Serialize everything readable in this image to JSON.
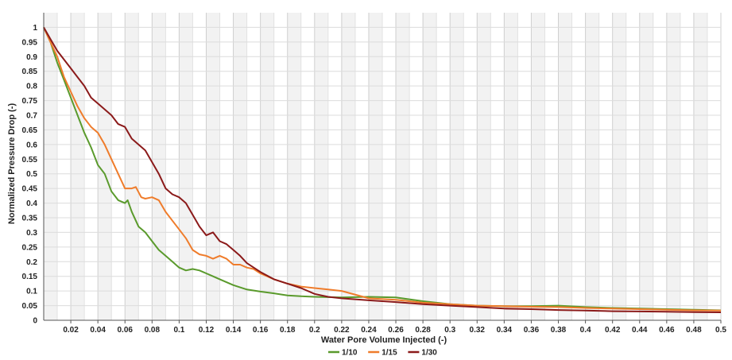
{
  "chart_data": {
    "type": "line",
    "xlabel": "Water Pore Volume Injected (-)",
    "ylabel": "Normalized Pressure Drop (-)",
    "xlim": [
      0,
      0.5
    ],
    "ylim": [
      0,
      1.05
    ],
    "x_ticks": [
      0.02,
      0.04,
      0.06,
      0.08,
      0.1,
      0.12,
      0.14,
      0.16,
      0.18,
      0.2,
      0.22,
      0.24,
      0.26,
      0.28,
      0.3,
      0.32,
      0.34,
      0.36,
      0.38,
      0.4,
      0.42,
      0.44,
      0.46,
      0.48,
      0.5
    ],
    "y_ticks": [
      0,
      0.05,
      0.1,
      0.15,
      0.2,
      0.25,
      0.3,
      0.35,
      0.4,
      0.45,
      0.5,
      0.55,
      0.6,
      0.65,
      0.7,
      0.75,
      0.8,
      0.85,
      0.9,
      0.95,
      1
    ],
    "grid": true,
    "legend_position": "bottom",
    "series": [
      {
        "name": "1/10",
        "color": "#5a9a2c",
        "points": [
          [
            0,
            1
          ],
          [
            0.005,
            0.95
          ],
          [
            0.01,
            0.88
          ],
          [
            0.015,
            0.82
          ],
          [
            0.02,
            0.76
          ],
          [
            0.025,
            0.7
          ],
          [
            0.03,
            0.64
          ],
          [
            0.035,
            0.59
          ],
          [
            0.04,
            0.53
          ],
          [
            0.045,
            0.5
          ],
          [
            0.05,
            0.44
          ],
          [
            0.055,
            0.41
          ],
          [
            0.06,
            0.4
          ],
          [
            0.062,
            0.41
          ],
          [
            0.065,
            0.37
          ],
          [
            0.07,
            0.32
          ],
          [
            0.075,
            0.3
          ],
          [
            0.08,
            0.27
          ],
          [
            0.085,
            0.24
          ],
          [
            0.09,
            0.22
          ],
          [
            0.095,
            0.2
          ],
          [
            0.1,
            0.18
          ],
          [
            0.105,
            0.17
          ],
          [
            0.11,
            0.175
          ],
          [
            0.115,
            0.17
          ],
          [
            0.12,
            0.16
          ],
          [
            0.125,
            0.15
          ],
          [
            0.13,
            0.14
          ],
          [
            0.14,
            0.12
          ],
          [
            0.15,
            0.105
          ],
          [
            0.16,
            0.098
          ],
          [
            0.17,
            0.092
          ],
          [
            0.18,
            0.085
          ],
          [
            0.19,
            0.082
          ],
          [
            0.2,
            0.08
          ],
          [
            0.22,
            0.078
          ],
          [
            0.24,
            0.08
          ],
          [
            0.26,
            0.078
          ],
          [
            0.28,
            0.065
          ],
          [
            0.3,
            0.055
          ],
          [
            0.32,
            0.05
          ],
          [
            0.34,
            0.048
          ],
          [
            0.36,
            0.048
          ],
          [
            0.38,
            0.05
          ],
          [
            0.4,
            0.045
          ],
          [
            0.42,
            0.042
          ],
          [
            0.44,
            0.04
          ],
          [
            0.46,
            0.038
          ],
          [
            0.48,
            0.036
          ],
          [
            0.5,
            0.034
          ]
        ]
      },
      {
        "name": "1/15",
        "color": "#ef7c2b",
        "points": [
          [
            0,
            1
          ],
          [
            0.005,
            0.95
          ],
          [
            0.01,
            0.9
          ],
          [
            0.015,
            0.83
          ],
          [
            0.02,
            0.78
          ],
          [
            0.025,
            0.73
          ],
          [
            0.03,
            0.69
          ],
          [
            0.035,
            0.66
          ],
          [
            0.04,
            0.64
          ],
          [
            0.045,
            0.6
          ],
          [
            0.05,
            0.55
          ],
          [
            0.055,
            0.5
          ],
          [
            0.06,
            0.45
          ],
          [
            0.065,
            0.45
          ],
          [
            0.068,
            0.455
          ],
          [
            0.072,
            0.42
          ],
          [
            0.075,
            0.415
          ],
          [
            0.08,
            0.42
          ],
          [
            0.085,
            0.41
          ],
          [
            0.09,
            0.37
          ],
          [
            0.095,
            0.34
          ],
          [
            0.1,
            0.31
          ],
          [
            0.105,
            0.28
          ],
          [
            0.11,
            0.24
          ],
          [
            0.115,
            0.225
          ],
          [
            0.12,
            0.22
          ],
          [
            0.125,
            0.21
          ],
          [
            0.13,
            0.22
          ],
          [
            0.135,
            0.21
          ],
          [
            0.14,
            0.19
          ],
          [
            0.145,
            0.19
          ],
          [
            0.15,
            0.18
          ],
          [
            0.155,
            0.175
          ],
          [
            0.16,
            0.16
          ],
          [
            0.17,
            0.14
          ],
          [
            0.18,
            0.125
          ],
          [
            0.19,
            0.115
          ],
          [
            0.2,
            0.11
          ],
          [
            0.21,
            0.105
          ],
          [
            0.22,
            0.1
          ],
          [
            0.24,
            0.075
          ],
          [
            0.26,
            0.07
          ],
          [
            0.28,
            0.06
          ],
          [
            0.3,
            0.055
          ],
          [
            0.32,
            0.05
          ],
          [
            0.34,
            0.048
          ],
          [
            0.36,
            0.046
          ],
          [
            0.38,
            0.045
          ],
          [
            0.4,
            0.042
          ],
          [
            0.42,
            0.04
          ],
          [
            0.44,
            0.038
          ],
          [
            0.46,
            0.036
          ],
          [
            0.48,
            0.034
          ],
          [
            0.5,
            0.033
          ]
        ]
      },
      {
        "name": "1/30",
        "color": "#8b1a1a",
        "points": [
          [
            0,
            1
          ],
          [
            0.005,
            0.96
          ],
          [
            0.01,
            0.92
          ],
          [
            0.015,
            0.89
          ],
          [
            0.02,
            0.86
          ],
          [
            0.025,
            0.83
          ],
          [
            0.03,
            0.8
          ],
          [
            0.035,
            0.76
          ],
          [
            0.04,
            0.74
          ],
          [
            0.045,
            0.72
          ],
          [
            0.05,
            0.7
          ],
          [
            0.055,
            0.67
          ],
          [
            0.06,
            0.66
          ],
          [
            0.065,
            0.62
          ],
          [
            0.07,
            0.6
          ],
          [
            0.075,
            0.58
          ],
          [
            0.08,
            0.54
          ],
          [
            0.085,
            0.5
          ],
          [
            0.09,
            0.45
          ],
          [
            0.095,
            0.43
          ],
          [
            0.1,
            0.42
          ],
          [
            0.105,
            0.4
          ],
          [
            0.11,
            0.36
          ],
          [
            0.115,
            0.32
          ],
          [
            0.12,
            0.29
          ],
          [
            0.125,
            0.3
          ],
          [
            0.13,
            0.27
          ],
          [
            0.135,
            0.26
          ],
          [
            0.14,
            0.24
          ],
          [
            0.145,
            0.22
          ],
          [
            0.15,
            0.195
          ],
          [
            0.16,
            0.165
          ],
          [
            0.17,
            0.14
          ],
          [
            0.18,
            0.125
          ],
          [
            0.19,
            0.11
          ],
          [
            0.2,
            0.09
          ],
          [
            0.21,
            0.08
          ],
          [
            0.22,
            0.075
          ],
          [
            0.24,
            0.068
          ],
          [
            0.26,
            0.062
          ],
          [
            0.28,
            0.055
          ],
          [
            0.3,
            0.05
          ],
          [
            0.32,
            0.045
          ],
          [
            0.34,
            0.04
          ],
          [
            0.36,
            0.038
          ],
          [
            0.38,
            0.035
          ],
          [
            0.4,
            0.033
          ],
          [
            0.42,
            0.031
          ],
          [
            0.44,
            0.03
          ],
          [
            0.46,
            0.029
          ],
          [
            0.48,
            0.028
          ],
          [
            0.5,
            0.027
          ]
        ]
      }
    ]
  }
}
